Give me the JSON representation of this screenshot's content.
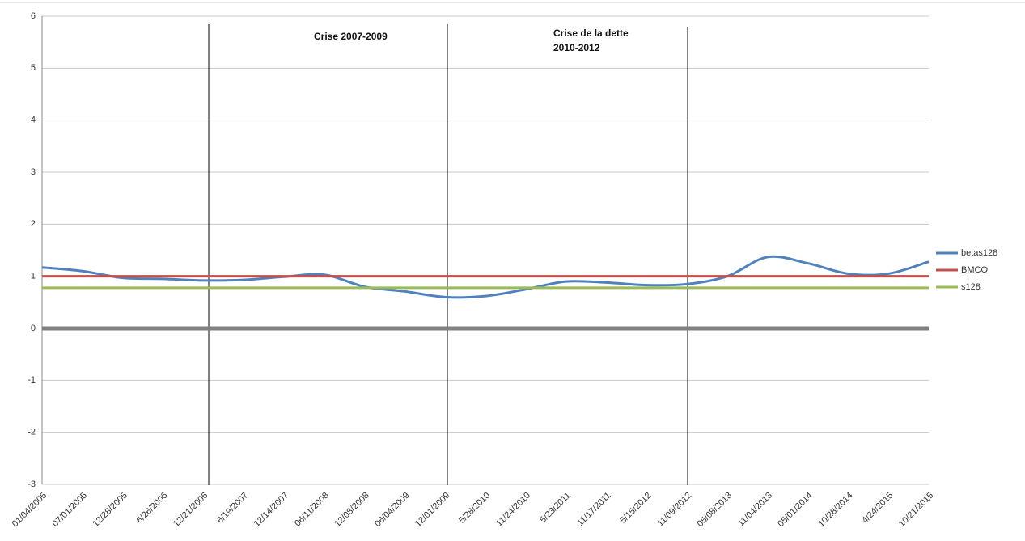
{
  "chart_data": {
    "type": "line",
    "categories": [
      "01/04/2005",
      "07/01/2005",
      "12/28/2005",
      "6/26/2006",
      "12/21/2006",
      "6/19/2007",
      "12/14/2007",
      "06/11/2008",
      "12/08/2008",
      "06/04/2009",
      "12/01/2009",
      "5/28/2010",
      "11/24/2010",
      "5/23/2011",
      "11/17/2011",
      "5/15/2012",
      "11/09/2012",
      "05/08/2013",
      "11/04/2013",
      "05/01/2014",
      "10/28/2014",
      "4/24/2015",
      "10/21/2015"
    ],
    "series": [
      {
        "name": "betas128",
        "color": "#4f81bd",
        "values": [
          1.17,
          1.1,
          0.97,
          0.95,
          0.92,
          0.93,
          0.99,
          1.03,
          0.8,
          0.71,
          0.6,
          0.62,
          0.75,
          0.9,
          0.88,
          0.83,
          0.85,
          1.0,
          1.37,
          1.25,
          1.05,
          1.05,
          1.28
        ]
      },
      {
        "name": "BMCO",
        "color": "#c0504d",
        "values": [
          1,
          1,
          1,
          1,
          1,
          1,
          1,
          1,
          1,
          1,
          1,
          1,
          1,
          1,
          1,
          1,
          1,
          1,
          1,
          1,
          1,
          1,
          1
        ]
      },
      {
        "name": "s128",
        "color": "#9bbb59",
        "values": [
          0.78,
          0.78,
          0.78,
          0.78,
          0.78,
          0.78,
          0.78,
          0.78,
          0.78,
          0.78,
          0.78,
          0.78,
          0.78,
          0.78,
          0.78,
          0.78,
          0.78,
          0.78,
          0.78,
          0.78,
          0.78,
          0.78,
          0.78
        ]
      }
    ],
    "ylim": [
      -3,
      6
    ],
    "yticks": [
      -3,
      -2,
      -1,
      0,
      1,
      2,
      3,
      4,
      5,
      6
    ],
    "grid": true,
    "legend": "right",
    "annotations": [
      "Crise 2007-2009",
      "Crise de la dette",
      "2010-2012"
    ]
  }
}
